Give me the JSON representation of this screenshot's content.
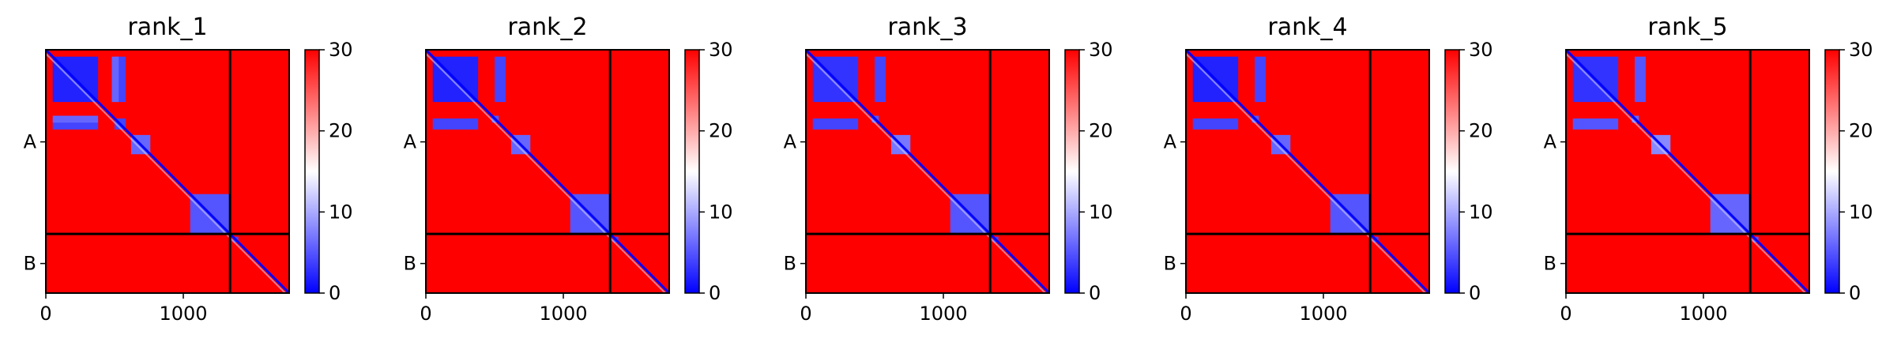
{
  "chart_data": [
    {
      "type": "heatmap",
      "title": "rank_1",
      "x_ticks": [
        0,
        1000
      ],
      "y_tick_labels": [
        "A",
        "B"
      ],
      "chain_boundary": 1340,
      "x_range": [
        0,
        1770
      ],
      "colorbar": {
        "range": [
          0,
          30
        ],
        "ticks": [
          0,
          10,
          20,
          30
        ],
        "colormap": "bwr",
        "low_color": "#0000ff",
        "mid_color": "#ffffff",
        "high_color": "#ff0000"
      },
      "background_value": 30,
      "low_value_blocks": [
        {
          "x": [
            50,
            380
          ],
          "y": [
            50,
            380
          ],
          "value": 2
        },
        {
          "x": [
            500,
            580
          ],
          "y": [
            50,
            380
          ],
          "value": 4
        },
        {
          "x": [
            50,
            380
          ],
          "y": [
            500,
            580
          ],
          "value": 4
        },
        {
          "x": [
            500,
            580
          ],
          "y": [
            500,
            580
          ],
          "value": 4
        },
        {
          "x": [
            50,
            380
          ],
          "y": [
            480,
            530
          ],
          "value": 6
        },
        {
          "x": [
            480,
            530
          ],
          "y": [
            50,
            380
          ],
          "value": 6
        },
        {
          "x": [
            620,
            760
          ],
          "y": [
            620,
            760
          ],
          "value": 6
        },
        {
          "x": [
            1050,
            1340
          ],
          "y": [
            1050,
            1340
          ],
          "value": 5
        },
        {
          "x": [
            1360,
            1400
          ],
          "y": [
            1360,
            1400
          ],
          "value": 4
        }
      ]
    },
    {
      "type": "heatmap",
      "title": "rank_2",
      "x_ticks": [
        0,
        1000
      ],
      "y_tick_labels": [
        "A",
        "B"
      ],
      "chain_boundary": 1340,
      "x_range": [
        0,
        1770
      ],
      "colorbar": {
        "range": [
          0,
          30
        ],
        "ticks": [
          0,
          10,
          20,
          30
        ],
        "colormap": "bwr",
        "low_color": "#0000ff",
        "mid_color": "#ffffff",
        "high_color": "#ff0000"
      },
      "background_value": 30,
      "low_value_blocks": [
        {
          "x": [
            50,
            380
          ],
          "y": [
            50,
            380
          ],
          "value": 2
        },
        {
          "x": [
            500,
            580
          ],
          "y": [
            50,
            380
          ],
          "value": 4
        },
        {
          "x": [
            50,
            380
          ],
          "y": [
            500,
            580
          ],
          "value": 4
        },
        {
          "x": [
            480,
            530
          ],
          "y": [
            480,
            530
          ],
          "value": 5
        },
        {
          "x": [
            620,
            760
          ],
          "y": [
            620,
            760
          ],
          "value": 6
        },
        {
          "x": [
            1050,
            1340
          ],
          "y": [
            1050,
            1340
          ],
          "value": 5
        },
        {
          "x": [
            1360,
            1400
          ],
          "y": [
            1360,
            1400
          ],
          "value": 4
        }
      ]
    },
    {
      "type": "heatmap",
      "title": "rank_3",
      "x_ticks": [
        0,
        1000
      ],
      "y_tick_labels": [
        "A",
        "B"
      ],
      "chain_boundary": 1340,
      "x_range": [
        0,
        1770
      ],
      "colorbar": {
        "range": [
          0,
          30
        ],
        "ticks": [
          0,
          10,
          20,
          30
        ],
        "colormap": "bwr",
        "low_color": "#0000ff",
        "mid_color": "#ffffff",
        "high_color": "#ff0000"
      },
      "background_value": 30,
      "low_value_blocks": [
        {
          "x": [
            50,
            380
          ],
          "y": [
            50,
            380
          ],
          "value": 3
        },
        {
          "x": [
            500,
            580
          ],
          "y": [
            50,
            380
          ],
          "value": 4
        },
        {
          "x": [
            50,
            380
          ],
          "y": [
            500,
            580
          ],
          "value": 4
        },
        {
          "x": [
            480,
            530
          ],
          "y": [
            480,
            530
          ],
          "value": 5
        },
        {
          "x": [
            620,
            760
          ],
          "y": [
            620,
            760
          ],
          "value": 7
        },
        {
          "x": [
            1050,
            1340
          ],
          "y": [
            1050,
            1340
          ],
          "value": 5
        },
        {
          "x": [
            1360,
            1400
          ],
          "y": [
            1360,
            1400
          ],
          "value": 4
        }
      ]
    },
    {
      "type": "heatmap",
      "title": "rank_4",
      "x_ticks": [
        0,
        1000
      ],
      "y_tick_labels": [
        "A",
        "B"
      ],
      "chain_boundary": 1340,
      "x_range": [
        0,
        1770
      ],
      "colorbar": {
        "range": [
          0,
          30
        ],
        "ticks": [
          0,
          10,
          20,
          30
        ],
        "colormap": "bwr",
        "low_color": "#0000ff",
        "mid_color": "#ffffff",
        "high_color": "#ff0000"
      },
      "background_value": 30,
      "low_value_blocks": [
        {
          "x": [
            50,
            380
          ],
          "y": [
            50,
            380
          ],
          "value": 2
        },
        {
          "x": [
            500,
            580
          ],
          "y": [
            50,
            380
          ],
          "value": 4
        },
        {
          "x": [
            50,
            380
          ],
          "y": [
            500,
            580
          ],
          "value": 4
        },
        {
          "x": [
            480,
            530
          ],
          "y": [
            480,
            530
          ],
          "value": 5
        },
        {
          "x": [
            620,
            760
          ],
          "y": [
            620,
            760
          ],
          "value": 6
        },
        {
          "x": [
            1050,
            1340
          ],
          "y": [
            1050,
            1340
          ],
          "value": 5
        },
        {
          "x": [
            1360,
            1400
          ],
          "y": [
            1360,
            1400
          ],
          "value": 4
        }
      ]
    },
    {
      "type": "heatmap",
      "title": "rank_5",
      "x_ticks": [
        0,
        1000
      ],
      "y_tick_labels": [
        "A",
        "B"
      ],
      "chain_boundary": 1340,
      "x_range": [
        0,
        1770
      ],
      "colorbar": {
        "range": [
          0,
          30
        ],
        "ticks": [
          0,
          10,
          20,
          30
        ],
        "colormap": "bwr",
        "low_color": "#0000ff",
        "mid_color": "#ffffff",
        "high_color": "#ff0000"
      },
      "background_value": 30,
      "low_value_blocks": [
        {
          "x": [
            50,
            380
          ],
          "y": [
            50,
            380
          ],
          "value": 3
        },
        {
          "x": [
            500,
            580
          ],
          "y": [
            50,
            380
          ],
          "value": 5
        },
        {
          "x": [
            50,
            380
          ],
          "y": [
            500,
            580
          ],
          "value": 5
        },
        {
          "x": [
            480,
            530
          ],
          "y": [
            480,
            530
          ],
          "value": 6
        },
        {
          "x": [
            620,
            760
          ],
          "y": [
            620,
            760
          ],
          "value": 8
        },
        {
          "x": [
            1050,
            1340
          ],
          "y": [
            1050,
            1340
          ],
          "value": 6
        },
        {
          "x": [
            1360,
            1400
          ],
          "y": [
            1360,
            1400
          ],
          "value": 5
        }
      ]
    }
  ]
}
